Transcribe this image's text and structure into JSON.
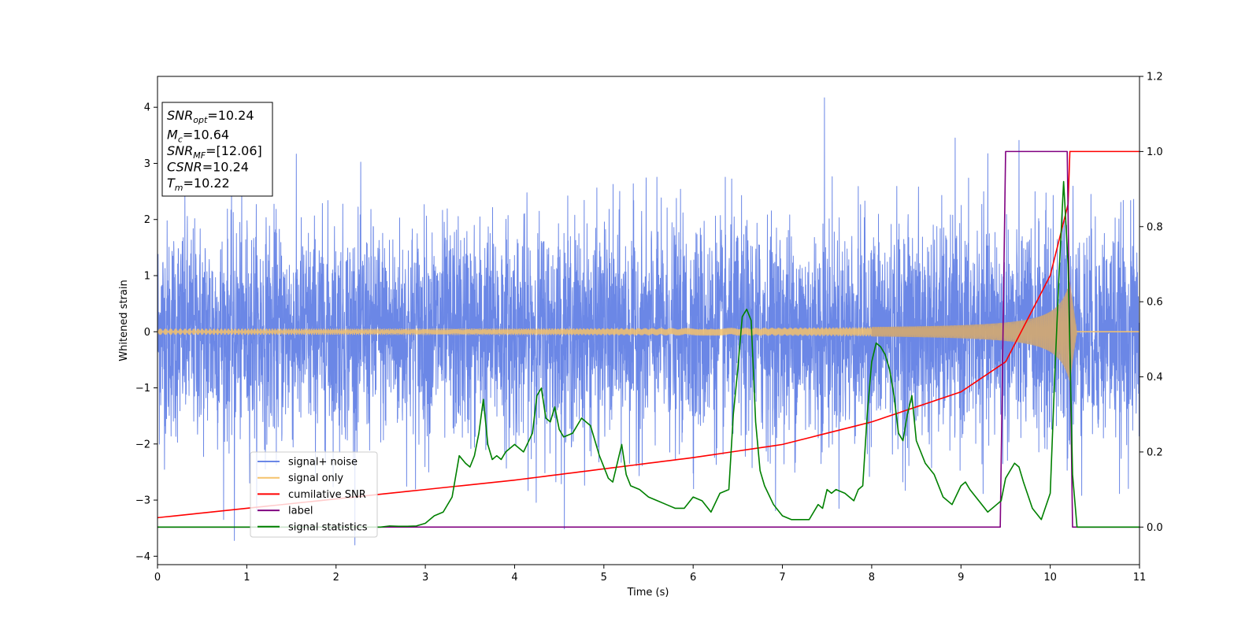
{
  "chart_data": {
    "type": "line",
    "title": "",
    "xlabel": "Time (s)",
    "ylabel": "Whitened strain",
    "xlim": [
      0,
      11
    ],
    "ylim_left": [
      -4.15,
      4.55
    ],
    "ylim_right": [
      -0.1,
      1.2
    ],
    "x_ticks": [
      "0",
      "1",
      "2",
      "3",
      "4",
      "5",
      "6",
      "7",
      "8",
      "9",
      "10",
      "11"
    ],
    "y_left_ticks": [
      "−4",
      "−3",
      "−2",
      "−1",
      "0",
      "1",
      "2",
      "3",
      "4"
    ],
    "y_right_ticks": [
      "0.0",
      "0.2",
      "0.4",
      "0.6",
      "0.8",
      "1.0",
      "1.2"
    ],
    "grid": false,
    "legend_position": "lower-left",
    "series": [
      {
        "name": "signal+ noise",
        "axis": "left",
        "color": "#6b87e6",
        "description_values": {
          "center": 0,
          "typical_amplitude_sigma": 1.0,
          "max": 4.17,
          "min": -3.72
        }
      },
      {
        "name": "signal only",
        "axis": "left",
        "color": "#f5c26b",
        "chirp": {
          "start": 0,
          "merger_time": 10.22,
          "amplitude_end": 0.85,
          "ringdown_end": 10.3
        }
      },
      {
        "name": "cumilative SNR",
        "axis": "right",
        "color": "#ff0000",
        "x": [
          0,
          1,
          2,
          3,
          4,
          5,
          6,
          7,
          8,
          9,
          9.5,
          10,
          10.2,
          10.22,
          11
        ],
        "y": [
          0.025,
          0.05,
          0.075,
          0.1,
          0.125,
          0.155,
          0.185,
          0.22,
          0.28,
          0.36,
          0.44,
          0.67,
          0.86,
          1.0,
          1.0
        ]
      },
      {
        "name": "label",
        "axis": "right",
        "color": "#800080",
        "x": [
          0,
          9.44,
          9.5,
          10.19,
          10.25,
          11
        ],
        "y": [
          0.0,
          0.0,
          1.0,
          1.0,
          0.0,
          0.0
        ]
      },
      {
        "name": "signal statistics",
        "axis": "right",
        "color": "#008000",
        "x": [
          0,
          2.5,
          2.6,
          2.7,
          2.8,
          2.9,
          3.0,
          3.1,
          3.2,
          3.3,
          3.38,
          3.45,
          3.5,
          3.55,
          3.6,
          3.65,
          3.7,
          3.75,
          3.8,
          3.85,
          3.9,
          4.0,
          4.1,
          4.2,
          4.25,
          4.3,
          4.35,
          4.4,
          4.45,
          4.5,
          4.55,
          4.65,
          4.75,
          4.85,
          4.95,
          5.05,
          5.1,
          5.2,
          5.25,
          5.3,
          5.4,
          5.5,
          5.6,
          5.7,
          5.8,
          5.9,
          6.0,
          6.1,
          6.2,
          6.3,
          6.4,
          6.45,
          6.5,
          6.55,
          6.6,
          6.65,
          6.7,
          6.75,
          6.8,
          6.9,
          7.0,
          7.1,
          7.2,
          7.3,
          7.4,
          7.45,
          7.5,
          7.55,
          7.6,
          7.7,
          7.8,
          7.85,
          7.9,
          7.95,
          8.0,
          8.05,
          8.1,
          8.15,
          8.2,
          8.25,
          8.3,
          8.35,
          8.4,
          8.45,
          8.5,
          8.6,
          8.7,
          8.8,
          8.9,
          9.0,
          9.05,
          9.1,
          9.2,
          9.3,
          9.4,
          9.45,
          9.5,
          9.55,
          9.6,
          9.65,
          9.7,
          9.8,
          9.9,
          10.0,
          10.05,
          10.1,
          10.15,
          10.2,
          10.25,
          10.3,
          11
        ],
        "y": [
          0.0,
          0.0,
          0.003,
          0.002,
          0.002,
          0.003,
          0.01,
          0.03,
          0.04,
          0.08,
          0.19,
          0.17,
          0.16,
          0.19,
          0.25,
          0.34,
          0.22,
          0.18,
          0.19,
          0.18,
          0.2,
          0.22,
          0.2,
          0.25,
          0.35,
          0.37,
          0.29,
          0.28,
          0.32,
          0.26,
          0.24,
          0.25,
          0.29,
          0.27,
          0.19,
          0.13,
          0.12,
          0.22,
          0.14,
          0.11,
          0.1,
          0.08,
          0.07,
          0.06,
          0.05,
          0.05,
          0.08,
          0.07,
          0.04,
          0.09,
          0.1,
          0.3,
          0.42,
          0.56,
          0.58,
          0.55,
          0.28,
          0.15,
          0.11,
          0.06,
          0.03,
          0.02,
          0.02,
          0.02,
          0.06,
          0.05,
          0.1,
          0.09,
          0.1,
          0.09,
          0.07,
          0.1,
          0.11,
          0.3,
          0.44,
          0.49,
          0.48,
          0.46,
          0.42,
          0.35,
          0.25,
          0.23,
          0.3,
          0.35,
          0.23,
          0.17,
          0.14,
          0.08,
          0.06,
          0.11,
          0.12,
          0.1,
          0.07,
          0.04,
          0.06,
          0.07,
          0.13,
          0.15,
          0.17,
          0.16,
          0.12,
          0.05,
          0.02,
          0.09,
          0.4,
          0.68,
          0.92,
          0.7,
          0.14,
          0.0,
          0.0
        ]
      }
    ]
  },
  "info_box": {
    "lines": [
      {
        "main": "SNR",
        "sub": "opt",
        "rest": "=10.24"
      },
      {
        "main": "M",
        "sub": "c",
        "rest": "=10.64"
      },
      {
        "main": "SNR",
        "sub": "MF",
        "rest": "=[12.06]"
      },
      {
        "main": "CSNR",
        "sub": "",
        "rest": "=10.24"
      },
      {
        "main": "T",
        "sub": "m",
        "rest": "=10.22"
      }
    ]
  },
  "legend": {
    "items": [
      {
        "label": "signal+ noise",
        "color": "#6b87e6"
      },
      {
        "label": "signal only",
        "color": "#f5c26b"
      },
      {
        "label": "cumilative SNR",
        "color": "#ff0000"
      },
      {
        "label": "label",
        "color": "#800080"
      },
      {
        "label": "signal statistics",
        "color": "#008000"
      }
    ]
  }
}
